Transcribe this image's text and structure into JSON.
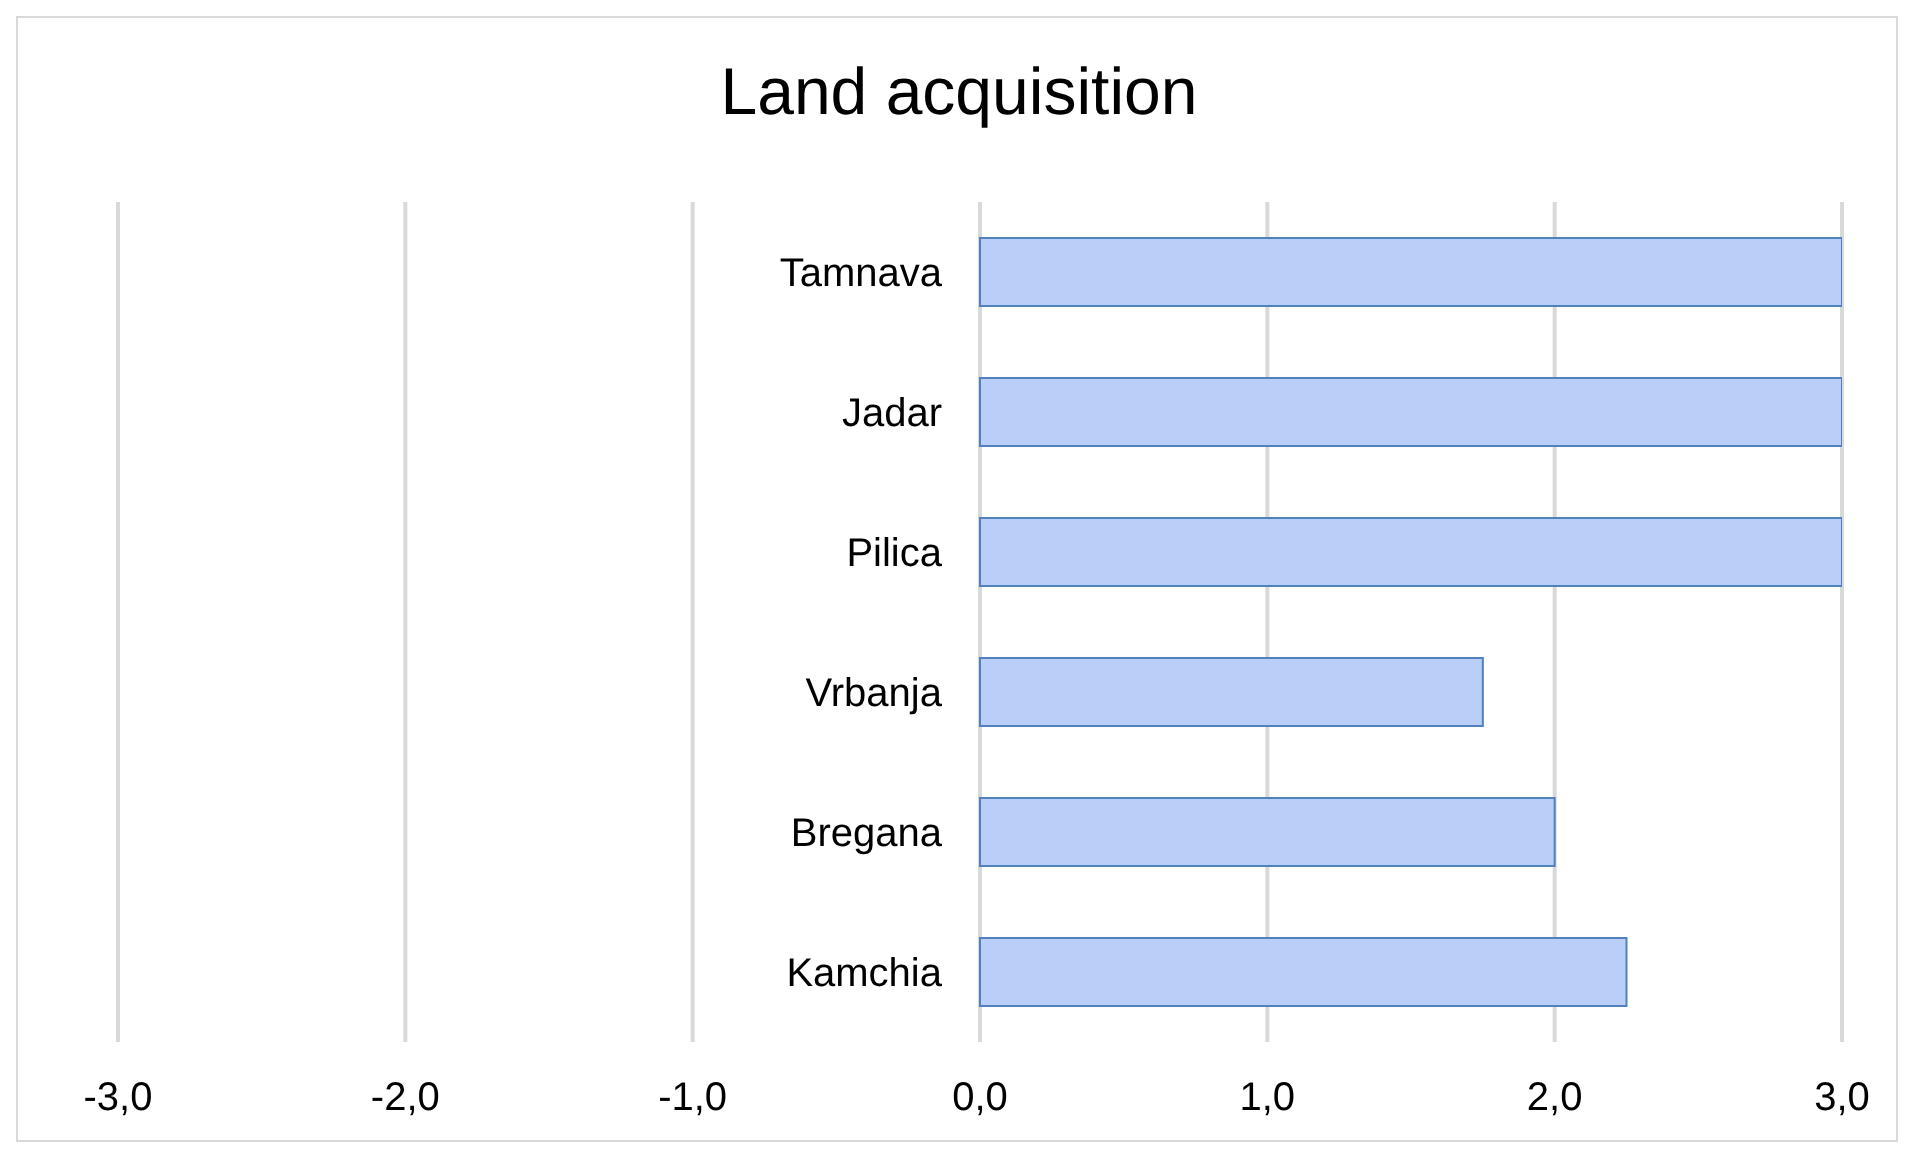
{
  "chart_data": {
    "type": "bar",
    "orientation": "horizontal",
    "title": "Land acquisition",
    "categories": [
      "Tamnava",
      "Jadar",
      "Pilica",
      "Vrbanja",
      "Bregana",
      "Kamchia"
    ],
    "values": [
      3.0,
      3.0,
      3.0,
      1.75,
      2.0,
      2.25
    ],
    "color": "#b9cff8",
    "xlim": [
      -3,
      3
    ],
    "xticks": [
      {
        "value": -3,
        "label": "-3,0"
      },
      {
        "value": -2,
        "label": "-2,0"
      },
      {
        "value": -1,
        "label": "-1,0"
      },
      {
        "value": 0,
        "label": "0,0"
      },
      {
        "value": 1,
        "label": "1,0"
      },
      {
        "value": 2,
        "label": "2,0"
      },
      {
        "value": 3,
        "label": "3,0"
      }
    ],
    "grid": "x"
  }
}
